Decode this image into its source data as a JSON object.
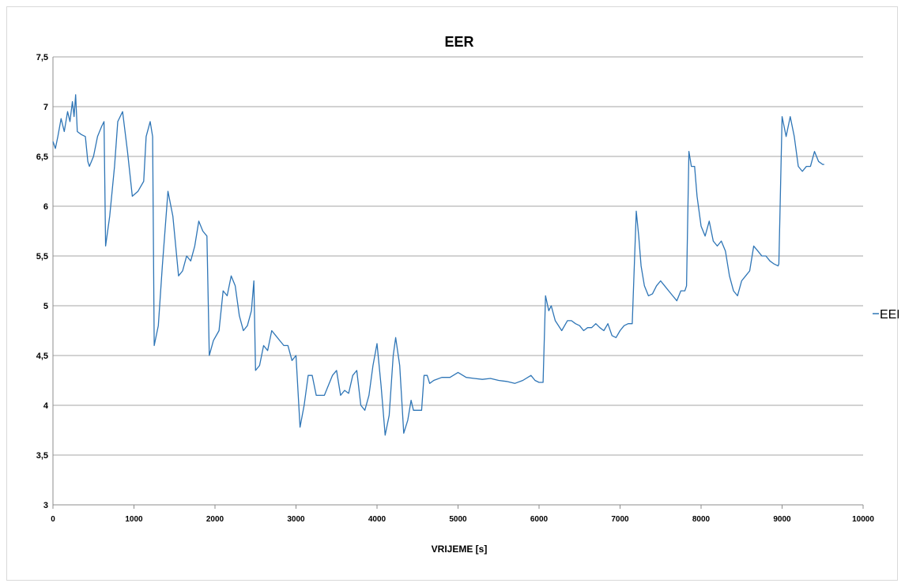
{
  "chart_data": {
    "type": "line",
    "title": "EER",
    "xlabel": "VRIJEME [s]",
    "ylabel": "",
    "xlim": [
      0,
      10000
    ],
    "ylim": [
      3,
      7.5
    ],
    "x_ticks": [
      0,
      1000,
      2000,
      3000,
      4000,
      5000,
      6000,
      7000,
      8000,
      9000,
      10000
    ],
    "x_tick_labels": [
      "0",
      "1000",
      "2000",
      "3000",
      "4000",
      "5000",
      "6000",
      "7000",
      "8000",
      "9000",
      "10000"
    ],
    "y_ticks": [
      3,
      3.5,
      4,
      4.5,
      5,
      5.5,
      6,
      6.5,
      7,
      7.5
    ],
    "y_tick_labels": [
      "3",
      "3,5",
      "4",
      "4,5",
      "5",
      "5,5",
      "6",
      "6,5",
      "7",
      "7,5"
    ],
    "grid": "horizontal",
    "legend_position": "right",
    "series": [
      {
        "name": "EER",
        "color": "#2e75b6",
        "points": [
          [
            0,
            6.65
          ],
          [
            30,
            6.58
          ],
          [
            60,
            6.7
          ],
          [
            100,
            6.88
          ],
          [
            140,
            6.75
          ],
          [
            180,
            6.95
          ],
          [
            210,
            6.85
          ],
          [
            240,
            7.05
          ],
          [
            260,
            6.9
          ],
          [
            280,
            7.12
          ],
          [
            300,
            6.75
          ],
          [
            350,
            6.72
          ],
          [
            400,
            6.7
          ],
          [
            430,
            6.45
          ],
          [
            450,
            6.4
          ],
          [
            500,
            6.5
          ],
          [
            550,
            6.7
          ],
          [
            600,
            6.8
          ],
          [
            630,
            6.85
          ],
          [
            650,
            5.6
          ],
          [
            700,
            5.9
          ],
          [
            760,
            6.4
          ],
          [
            800,
            6.85
          ],
          [
            860,
            6.95
          ],
          [
            920,
            6.55
          ],
          [
            980,
            6.1
          ],
          [
            1050,
            6.15
          ],
          [
            1120,
            6.25
          ],
          [
            1150,
            6.7
          ],
          [
            1200,
            6.85
          ],
          [
            1230,
            6.7
          ],
          [
            1250,
            4.6
          ],
          [
            1300,
            4.8
          ],
          [
            1350,
            5.4
          ],
          [
            1420,
            6.15
          ],
          [
            1480,
            5.9
          ],
          [
            1550,
            5.3
          ],
          [
            1600,
            5.35
          ],
          [
            1650,
            5.5
          ],
          [
            1700,
            5.45
          ],
          [
            1750,
            5.6
          ],
          [
            1800,
            5.85
          ],
          [
            1850,
            5.75
          ],
          [
            1900,
            5.7
          ],
          [
            1930,
            4.5
          ],
          [
            1980,
            4.65
          ],
          [
            2050,
            4.75
          ],
          [
            2100,
            5.15
          ],
          [
            2150,
            5.1
          ],
          [
            2200,
            5.3
          ],
          [
            2250,
            5.2
          ],
          [
            2300,
            4.9
          ],
          [
            2350,
            4.75
          ],
          [
            2400,
            4.8
          ],
          [
            2450,
            4.95
          ],
          [
            2480,
            5.25
          ],
          [
            2500,
            4.35
          ],
          [
            2550,
            4.4
          ],
          [
            2600,
            4.6
          ],
          [
            2650,
            4.55
          ],
          [
            2700,
            4.75
          ],
          [
            2750,
            4.7
          ],
          [
            2800,
            4.65
          ],
          [
            2850,
            4.6
          ],
          [
            2900,
            4.6
          ],
          [
            2950,
            4.45
          ],
          [
            3000,
            4.5
          ],
          [
            3050,
            3.78
          ],
          [
            3100,
            4.0
          ],
          [
            3150,
            4.3
          ],
          [
            3200,
            4.3
          ],
          [
            3250,
            4.1
          ],
          [
            3300,
            4.1
          ],
          [
            3350,
            4.1
          ],
          [
            3400,
            4.2
          ],
          [
            3450,
            4.3
          ],
          [
            3500,
            4.35
          ],
          [
            3550,
            4.1
          ],
          [
            3600,
            4.15
          ],
          [
            3650,
            4.12
          ],
          [
            3700,
            4.3
          ],
          [
            3750,
            4.35
          ],
          [
            3800,
            4.0
          ],
          [
            3850,
            3.95
          ],
          [
            3900,
            4.1
          ],
          [
            3950,
            4.4
          ],
          [
            4000,
            4.62
          ],
          [
            4050,
            4.2
          ],
          [
            4100,
            3.7
          ],
          [
            4150,
            3.9
          ],
          [
            4200,
            4.5
          ],
          [
            4230,
            4.68
          ],
          [
            4280,
            4.4
          ],
          [
            4330,
            3.72
          ],
          [
            4380,
            3.85
          ],
          [
            4420,
            4.05
          ],
          [
            4450,
            3.95
          ],
          [
            4500,
            3.95
          ],
          [
            4550,
            3.95
          ],
          [
            4580,
            4.3
          ],
          [
            4620,
            4.3
          ],
          [
            4650,
            4.22
          ],
          [
            4700,
            4.25
          ],
          [
            4800,
            4.28
          ],
          [
            4900,
            4.28
          ],
          [
            5000,
            4.33
          ],
          [
            5100,
            4.28
          ],
          [
            5200,
            4.27
          ],
          [
            5300,
            4.26
          ],
          [
            5400,
            4.27
          ],
          [
            5500,
            4.25
          ],
          [
            5600,
            4.24
          ],
          [
            5700,
            4.22
          ],
          [
            5800,
            4.25
          ],
          [
            5900,
            4.3
          ],
          [
            5950,
            4.25
          ],
          [
            6000,
            4.23
          ],
          [
            6050,
            4.23
          ],
          [
            6080,
            5.1
          ],
          [
            6120,
            4.95
          ],
          [
            6150,
            5.0
          ],
          [
            6200,
            4.85
          ],
          [
            6280,
            4.75
          ],
          [
            6350,
            4.85
          ],
          [
            6400,
            4.85
          ],
          [
            6450,
            4.82
          ],
          [
            6500,
            4.8
          ],
          [
            6550,
            4.75
          ],
          [
            6600,
            4.78
          ],
          [
            6650,
            4.78
          ],
          [
            6700,
            4.82
          ],
          [
            6750,
            4.78
          ],
          [
            6800,
            4.75
          ],
          [
            6850,
            4.82
          ],
          [
            6900,
            4.7
          ],
          [
            6950,
            4.68
          ],
          [
            7000,
            4.75
          ],
          [
            7050,
            4.8
          ],
          [
            7100,
            4.82
          ],
          [
            7150,
            4.82
          ],
          [
            7200,
            5.95
          ],
          [
            7230,
            5.7
          ],
          [
            7260,
            5.4
          ],
          [
            7300,
            5.2
          ],
          [
            7350,
            5.1
          ],
          [
            7400,
            5.12
          ],
          [
            7450,
            5.2
          ],
          [
            7500,
            5.25
          ],
          [
            7550,
            5.2
          ],
          [
            7600,
            5.15
          ],
          [
            7650,
            5.1
          ],
          [
            7700,
            5.05
          ],
          [
            7750,
            5.15
          ],
          [
            7800,
            5.15
          ],
          [
            7820,
            5.2
          ],
          [
            7850,
            6.55
          ],
          [
            7880,
            6.4
          ],
          [
            7920,
            6.4
          ],
          [
            7950,
            6.1
          ],
          [
            8000,
            5.8
          ],
          [
            8050,
            5.7
          ],
          [
            8100,
            5.85
          ],
          [
            8150,
            5.65
          ],
          [
            8200,
            5.6
          ],
          [
            8250,
            5.65
          ],
          [
            8300,
            5.55
          ],
          [
            8350,
            5.3
          ],
          [
            8400,
            5.15
          ],
          [
            8450,
            5.1
          ],
          [
            8500,
            5.25
          ],
          [
            8550,
            5.3
          ],
          [
            8600,
            5.35
          ],
          [
            8650,
            5.6
          ],
          [
            8700,
            5.55
          ],
          [
            8750,
            5.5
          ],
          [
            8800,
            5.5
          ],
          [
            8850,
            5.45
          ],
          [
            8900,
            5.42
          ],
          [
            8950,
            5.4
          ],
          [
            8960,
            5.42
          ],
          [
            9000,
            6.9
          ],
          [
            9050,
            6.7
          ],
          [
            9100,
            6.9
          ],
          [
            9150,
            6.7
          ],
          [
            9200,
            6.4
          ],
          [
            9250,
            6.35
          ],
          [
            9300,
            6.4
          ],
          [
            9350,
            6.4
          ],
          [
            9400,
            6.55
          ],
          [
            9450,
            6.45
          ],
          [
            9500,
            6.42
          ],
          [
            9520,
            6.42
          ]
        ]
      }
    ]
  }
}
